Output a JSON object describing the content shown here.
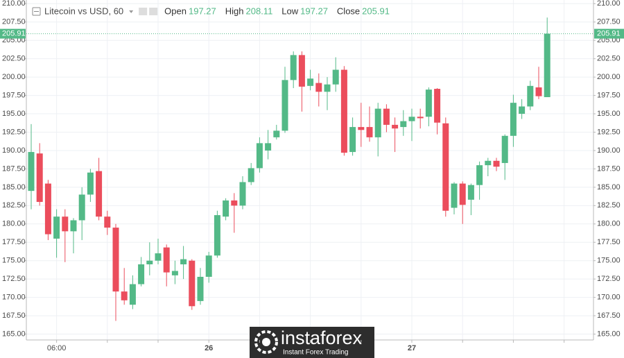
{
  "chart_data": {
    "type": "candlestick",
    "title": "Litecoin vs USD, 60",
    "ohlc_labels": [
      "Open",
      "High",
      "Low",
      "Close"
    ],
    "categories": [
      null,
      null,
      null,
      "06:00",
      null,
      null,
      null,
      null,
      null,
      null,
      null,
      null,
      null,
      null,
      null,
      null,
      null,
      null,
      null,
      null,
      null,
      "26",
      null,
      null,
      null,
      null,
      null,
      null,
      null,
      null,
      null,
      null,
      null,
      null,
      null,
      null,
      null,
      null,
      null,
      null,
      null,
      null,
      null,
      null,
      null,
      "27",
      null,
      null,
      null,
      null,
      null,
      null,
      null,
      null,
      null,
      null,
      null,
      null,
      null,
      null,
      null,
      null
    ],
    "open": [
      184.5,
      189.6,
      185.5,
      178.0,
      181.0,
      179.0,
      180.5,
      184.0,
      187.2,
      181.0,
      179.5,
      170.8,
      169.0,
      171.8,
      174.5,
      175.0,
      176.8,
      173.0,
      174.5,
      175.0,
      169.5,
      172.8,
      175.7,
      181.0,
      183.2,
      182.5,
      185.7,
      187.6,
      190.0,
      191.8,
      192.7,
      199.6,
      203.0,
      198.8,
      199.2,
      198.0,
      199.0,
      201.0,
      189.8,
      193.2,
      193.2,
      191.8,
      195.7,
      193.5,
      193.2,
      194.0,
      194.6,
      194.6,
      198.4,
      193.7,
      182.2,
      185.5,
      183.3,
      185.3,
      188.0,
      188.6,
      188.3,
      192.0,
      195.0,
      196.0,
      198.6,
      197.27
    ],
    "high": [
      193.6,
      191.0,
      186.0,
      182.0,
      182.0,
      180.8,
      185.0,
      187.5,
      189.0,
      181.8,
      180.0,
      174.0,
      173.0,
      175.5,
      177.5,
      178.0,
      177.2,
      175.0,
      177.0,
      175.2,
      174.0,
      176.2,
      181.8,
      183.5,
      184.2,
      186.5,
      188.3,
      191.8,
      192.8,
      193.5,
      201.4,
      203.5,
      203.5,
      201.0,
      200.5,
      200.0,
      202.7,
      201.5,
      194.5,
      196.5,
      196.0,
      196.5,
      196.3,
      194.5,
      195.5,
      195.7,
      195.7,
      198.6,
      198.5,
      194.5,
      185.7,
      185.8,
      185.5,
      188.5,
      189.0,
      189.0,
      192.2,
      197.6,
      197.0,
      199.5,
      201.4,
      208.11
    ],
    "low": [
      182.0,
      182.5,
      177.8,
      175.4,
      174.8,
      176.0,
      177.8,
      183.0,
      180.5,
      178.5,
      166.8,
      169.0,
      168.4,
      171.5,
      173.0,
      174.5,
      171.5,
      171.8,
      172.5,
      168.3,
      169.0,
      172.0,
      175.4,
      180.5,
      178.8,
      182.0,
      185.3,
      187.0,
      188.8,
      191.5,
      192.4,
      198.5,
      195.3,
      198.2,
      196.0,
      195.5,
      198.0,
      189.3,
      189.3,
      190.5,
      191.2,
      189.2,
      192.5,
      189.8,
      192.0,
      191.3,
      193.0,
      193.3,
      192.2,
      181.0,
      181.3,
      180.0,
      181.2,
      183.3,
      186.5,
      187.2,
      186.0,
      190.5,
      194.3,
      195.5,
      197.0,
      197.27
    ],
    "close": [
      189.8,
      183.0,
      178.6,
      181.0,
      179.0,
      180.5,
      184.0,
      187.0,
      181.0,
      179.5,
      170.8,
      169.6,
      171.8,
      174.5,
      175.0,
      176.0,
      173.4,
      173.6,
      175.2,
      168.8,
      172.8,
      175.7,
      181.2,
      183.2,
      182.5,
      185.7,
      187.6,
      191.0,
      191.0,
      192.7,
      199.6,
      203.0,
      198.7,
      199.8,
      198.0,
      199.0,
      201.0,
      189.7,
      193.2,
      192.8,
      191.8,
      195.7,
      193.5,
      193.0,
      194.0,
      194.6,
      194.4,
      198.3,
      193.8,
      181.8,
      185.5,
      182.6,
      185.3,
      188.0,
      188.6,
      187.8,
      192.0,
      196.5,
      196.0,
      198.8,
      197.4,
      205.91
    ],
    "up_color": "#53b987",
    "down_color": "#eb4d5c",
    "ylim": [
      164.2,
      210.5
    ],
    "yticks": [
      {
        "value": 165,
        "label": "165.00"
      },
      {
        "value": 167.5,
        "label": "167.50"
      },
      {
        "value": 170,
        "label": "170.00"
      },
      {
        "value": 172.5,
        "label": "172.50"
      },
      {
        "value": 175,
        "label": "175.00"
      },
      {
        "value": 177.5,
        "label": "177.50"
      },
      {
        "value": 180,
        "label": "180.00"
      },
      {
        "value": 182.5,
        "label": "182.50"
      },
      {
        "value": 185,
        "label": "185.00"
      },
      {
        "value": 187.5,
        "label": "187.50"
      },
      {
        "value": 190,
        "label": "190.00"
      },
      {
        "value": 192.5,
        "label": "192.50"
      },
      {
        "value": 195,
        "label": "195.00"
      },
      {
        "value": 197.5,
        "label": "197.50"
      },
      {
        "value": 200,
        "label": "200.00"
      },
      {
        "value": 202.5,
        "label": "202.50"
      },
      {
        "value": 205,
        "label": "205.00"
      },
      {
        "value": 207.5,
        "label": "207.50"
      },
      {
        "value": 210,
        "label": "210.00"
      }
    ],
    "grid": true
  },
  "watermark": {
    "brand": "instaforex",
    "tagline": "Instant Forex Trading"
  }
}
